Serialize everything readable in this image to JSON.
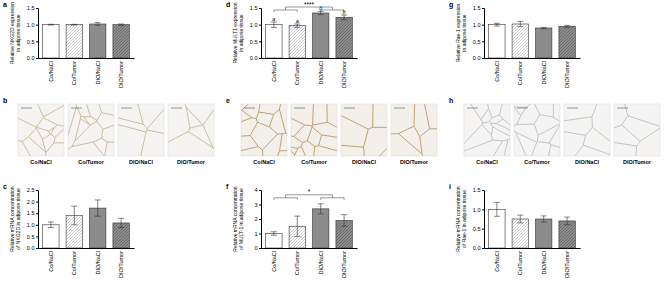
{
  "chart_data": [
    {
      "type": "bar",
      "title": "a",
      "ylabel": [
        "Relative NKG2D expression",
        "in adipose tissue"
      ],
      "categories": [
        "Co/NaCl",
        "Co/Tumor",
        "DIO/NaCl",
        "DIO/Tumor"
      ],
      "values": [
        1.0,
        1.0,
        1.02,
        1.0
      ],
      "errors": [
        0.01,
        0.01,
        0.04,
        0.02
      ],
      "colors": [
        "#ffffff",
        "#ffffff",
        "#8c8c8c",
        "#8c8c8c"
      ],
      "ylim": [
        0,
        1.5
      ],
      "yticks": [
        {
          "value": 0,
          "label": "0.0"
        },
        {
          "value": 0.5,
          "label": "0.5"
        },
        {
          "value": 1,
          "label": "1.0"
        },
        {
          "value": 1.5,
          "label": "1.5"
        }
      ]
    },
    {
      "type": "bar",
      "title": "d",
      "ylabel": [
        "Relative MULT1 expression",
        "in adipose tissue"
      ],
      "categories": [
        "Co/NaCl",
        "Co/Tumor",
        "DIO/NaCl",
        "DIO/Tumor"
      ],
      "values": [
        1.0,
        0.97,
        1.35,
        1.22
      ],
      "errors": [
        0.08,
        0.05,
        0.05,
        0.07
      ],
      "colors": [
        "#ffffff",
        "#ffffff",
        "#8c8c8c",
        "#8c8c8c"
      ],
      "ylim": [
        0,
        1.5
      ],
      "yticks": [
        {
          "value": 0,
          "label": "0.0"
        },
        {
          "value": 0.5,
          "label": "0.5"
        },
        {
          "value": 1,
          "label": "1.0"
        },
        {
          "value": 1.5,
          "label": "1.5"
        }
      ],
      "annotations": [
        {
          "text": "a",
          "category": 0
        },
        {
          "text": "a",
          "category": 1
        },
        {
          "text": "b",
          "category": 2
        },
        {
          "text": "b",
          "category": 3
        },
        {
          "text": "****",
          "groups": [
            [
              0,
              1
            ],
            [
              2,
              3
            ]
          ]
        }
      ]
    },
    {
      "type": "bar",
      "title": "g",
      "ylabel": [
        "Relative Rae-1 expression",
        "in adipose tissue"
      ],
      "categories": [
        "Co/NaCl",
        "Co/Tumor",
        "DIO/NaCl",
        "DIO/Tumor"
      ],
      "values": [
        1.0,
        1.02,
        0.9,
        0.95
      ],
      "errors": [
        0.04,
        0.08,
        0.02,
        0.03
      ],
      "colors": [
        "#ffffff",
        "#ffffff",
        "#8c8c8c",
        "#8c8c8c"
      ],
      "ylim": [
        0,
        1.5
      ],
      "yticks": [
        {
          "value": 0,
          "label": "0.0"
        },
        {
          "value": 0.5,
          "label": "0.5"
        },
        {
          "value": 1,
          "label": "1.0"
        },
        {
          "value": 1.5,
          "label": "1.5"
        }
      ]
    },
    {
      "type": "bar",
      "title": "c",
      "ylabel": [
        "Relative mRNA concentration",
        "of NKG2D in adipose tissue"
      ],
      "categories": [
        "Co/NaCl",
        "Co/Tumor",
        "DIO/NaCl",
        "DIO/Tumor"
      ],
      "values": [
        1.0,
        1.4,
        1.72,
        1.08
      ],
      "errors": [
        0.12,
        0.4,
        0.35,
        0.2
      ],
      "colors": [
        "#ffffff",
        "#ffffff",
        "#8c8c8c",
        "#8c8c8c"
      ],
      "ylim": [
        0,
        2.5
      ],
      "yticks": [
        {
          "value": 0,
          "label": "0.0"
        },
        {
          "value": 0.5,
          "label": "0.5"
        },
        {
          "value": 1,
          "label": "1.0"
        },
        {
          "value": 1.5,
          "label": "1.5"
        },
        {
          "value": 2,
          "label": "2.0"
        },
        {
          "value": 2.5,
          "label": "2.5"
        }
      ]
    },
    {
      "type": "bar",
      "title": "f",
      "ylabel": [
        "Relative mRNA concentration",
        "of MULT-1 in adipose tissue"
      ],
      "categories": [
        "Co/NaCl",
        "Co/Tumor",
        "DIO/NaCl",
        "DIO/Tumor"
      ],
      "values": [
        1.0,
        1.5,
        2.7,
        1.9
      ],
      "errors": [
        0.12,
        0.7,
        0.35,
        0.4
      ],
      "colors": [
        "#ffffff",
        "#ffffff",
        "#8c8c8c",
        "#8c8c8c"
      ],
      "ylim": [
        0,
        4
      ],
      "yticks": [
        0,
        1,
        2,
        3,
        4
      ],
      "annotations": [
        {
          "text": "*",
          "groups": [
            [
              0,
              1
            ],
            [
              2,
              3
            ]
          ]
        }
      ]
    },
    {
      "type": "bar",
      "title": "i",
      "ylabel": [
        "Relative mRNA concentration",
        "of Rae-1 in adipose tissue"
      ],
      "categories": [
        "Co/NaCl",
        "Co/Tumor",
        "DIO/NaCl",
        "DIO/Tumor"
      ],
      "values": [
        1.0,
        0.75,
        0.75,
        0.7
      ],
      "errors": [
        0.18,
        0.1,
        0.08,
        0.1
      ],
      "colors": [
        "#ffffff",
        "#ffffff",
        "#8c8c8c",
        "#8c8c8c"
      ],
      "ylim": [
        0,
        1.5
      ],
      "yticks": [
        {
          "value": 0,
          "label": "0.0"
        },
        {
          "value": 0.5,
          "label": "0.5"
        },
        {
          "value": 1,
          "label": "1.0"
        },
        {
          "value": 1.5,
          "label": "1.5"
        }
      ]
    }
  ],
  "micrographs": [
    {
      "title": "b",
      "labels": [
        "Co/NaCl",
        "Co/Tumor",
        "DIO/NaCl",
        "DIO/Tumor"
      ]
    },
    {
      "title": "e",
      "labels": [
        "Co/NaCl",
        "Co/Tumor",
        "DIO/NaCl",
        "DIO/Tumor"
      ]
    },
    {
      "title": "h",
      "labels": [
        "Co/NaCl",
        "Co/Tumor",
        "DIO/NaCl",
        "DIO/Tumor"
      ]
    }
  ]
}
